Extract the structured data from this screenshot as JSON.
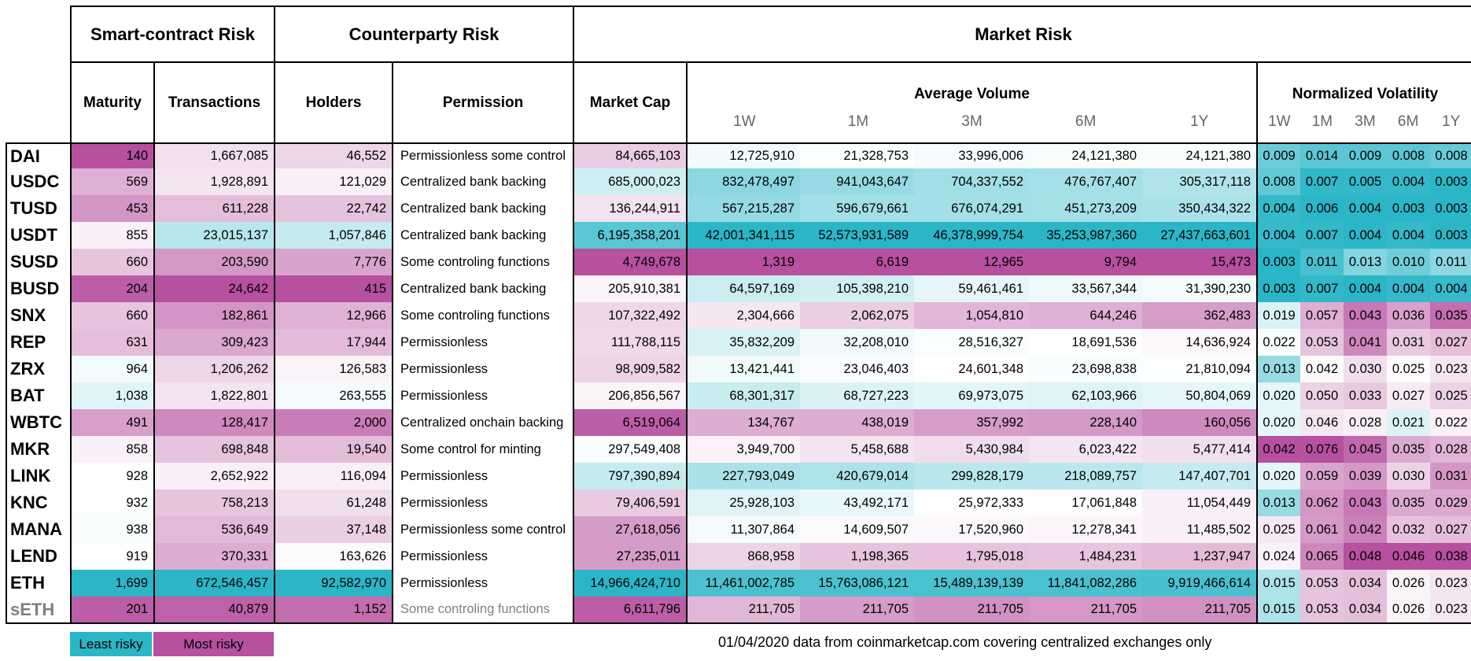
{
  "colors": {
    "least_risky": "#2bb6c7",
    "most_risky": "#b6509f",
    "neutral": "#ffffff",
    "border": "#000000"
  },
  "header": {
    "groups": [
      {
        "label": "Smart-contract Risk"
      },
      {
        "label": "Counterparty Risk"
      },
      {
        "label": "Market Risk"
      }
    ],
    "columns": {
      "maturity": "Maturity",
      "transactions": "Transactions",
      "holders": "Holders",
      "permission": "Permission",
      "market_cap": "Market Cap",
      "average_volume": "Average Volume",
      "normalized_volatility": "Normalized Volatility"
    },
    "periods": [
      "1W",
      "1M",
      "3M",
      "6M",
      "1Y"
    ]
  },
  "chart_data": {
    "type": "table",
    "rows": [
      {
        "token": "DAI",
        "maturity": "140",
        "transactions": "1,667,085",
        "holders": "46,552",
        "permission": "Permissionless some control",
        "market_cap": "84,665,103",
        "volume": [
          "12,725,910",
          "21,328,753",
          "33,996,006",
          "24,121,380",
          "24,121,380"
        ],
        "volatility": [
          "0.009",
          "0.014",
          "0.009",
          "0.008",
          "0.008"
        ]
      },
      {
        "token": "USDC",
        "maturity": "569",
        "transactions": "1,928,891",
        "holders": "121,029",
        "permission": "Centralized bank backing",
        "market_cap": "685,000,023",
        "volume": [
          "832,478,497",
          "941,043,647",
          "704,337,552",
          "476,767,407",
          "305,317,118"
        ],
        "volatility": [
          "0.008",
          "0.007",
          "0.005",
          "0.004",
          "0.003"
        ]
      },
      {
        "token": "TUSD",
        "maturity": "453",
        "transactions": "611,228",
        "holders": "22,742",
        "permission": "Centralized bank backing",
        "market_cap": "136,244,911",
        "volume": [
          "567,215,287",
          "596,679,661",
          "676,074,291",
          "451,273,209",
          "350,434,322"
        ],
        "volatility": [
          "0.004",
          "0.006",
          "0.004",
          "0.003",
          "0.003"
        ]
      },
      {
        "token": "USDT",
        "maturity": "855",
        "transactions": "23,015,137",
        "holders": "1,057,846",
        "permission": "Centralized bank backing",
        "market_cap": "6,195,358,201",
        "volume": [
          "42,001,341,115",
          "52,573,931,589",
          "46,378,999,754",
          "35,253,987,360",
          "27,437,663,601"
        ],
        "volatility": [
          "0.004",
          "0.007",
          "0.004",
          "0.004",
          "0.003"
        ]
      },
      {
        "token": "SUSD",
        "maturity": "660",
        "transactions": "203,590",
        "holders": "7,776",
        "permission": "Some controling functions",
        "market_cap": "4,749,678",
        "volume": [
          "1,319",
          "6,619",
          "12,965",
          "9,794",
          "15,473"
        ],
        "volatility": [
          "0.003",
          "0.011",
          "0.013",
          "0.010",
          "0.011"
        ]
      },
      {
        "token": "BUSD",
        "maturity": "204",
        "transactions": "24,642",
        "holders": "415",
        "permission": "Centralized bank backing",
        "market_cap": "205,910,381",
        "volume": [
          "64,597,169",
          "105,398,210",
          "59,461,461",
          "33,567,344",
          "31,390,230"
        ],
        "volatility": [
          "0.003",
          "0.007",
          "0.004",
          "0.004",
          "0.004"
        ]
      },
      {
        "token": "SNX",
        "maturity": "660",
        "transactions": "182,861",
        "holders": "12,966",
        "permission": "Some controling functions",
        "market_cap": "107,322,492",
        "volume": [
          "2,304,666",
          "2,062,075",
          "1,054,810",
          "644,246",
          "362,483"
        ],
        "volatility": [
          "0.019",
          "0.057",
          "0.043",
          "0.036",
          "0.035"
        ]
      },
      {
        "token": "REP",
        "maturity": "631",
        "transactions": "309,423",
        "holders": "17,944",
        "permission": "Permissionless",
        "market_cap": "111,788,115",
        "volume": [
          "35,832,209",
          "32,208,010",
          "28,516,327",
          "18,691,536",
          "14,636,924"
        ],
        "volatility": [
          "0.022",
          "0.053",
          "0.041",
          "0.031",
          "0.027"
        ]
      },
      {
        "token": "ZRX",
        "maturity": "964",
        "transactions": "1,206,262",
        "holders": "126,583",
        "permission": "Permissionless",
        "market_cap": "98,909,582",
        "volume": [
          "13,421,441",
          "23,046,403",
          "24,601,348",
          "23,698,838",
          "21,810,094"
        ],
        "volatility": [
          "0.013",
          "0.042",
          "0.030",
          "0.025",
          "0.023"
        ]
      },
      {
        "token": "BAT",
        "maturity": "1,038",
        "transactions": "1,822,801",
        "holders": "263,555",
        "permission": "Permissionless",
        "market_cap": "206,856,567",
        "volume": [
          "68,301,317",
          "68,727,223",
          "69,973,075",
          "62,103,966",
          "50,804,069"
        ],
        "volatility": [
          "0.020",
          "0.050",
          "0.033",
          "0.027",
          "0.025"
        ]
      },
      {
        "token": "WBTC",
        "maturity": "491",
        "transactions": "128,417",
        "holders": "2,000",
        "permission": "Centralized onchain backing",
        "market_cap": "6,519,064",
        "volume": [
          "134,767",
          "438,019",
          "357,992",
          "228,140",
          "160,056"
        ],
        "volatility": [
          "0.020",
          "0.046",
          "0.028",
          "0.021",
          "0.022"
        ]
      },
      {
        "token": "MKR",
        "maturity": "858",
        "transactions": "698,848",
        "holders": "19,540",
        "permission": "Some control for minting",
        "market_cap": "297,549,408",
        "volume": [
          "3,949,700",
          "5,458,688",
          "5,430,984",
          "6,023,422",
          "5,477,414"
        ],
        "volatility": [
          "0.042",
          "0.076",
          "0.045",
          "0.035",
          "0.028"
        ]
      },
      {
        "token": "LINK",
        "maturity": "928",
        "transactions": "2,652,922",
        "holders": "116,094",
        "permission": "Permissionless",
        "market_cap": "797,390,894",
        "volume": [
          "227,793,049",
          "420,679,014",
          "299,828,179",
          "218,089,757",
          "147,407,701"
        ],
        "volatility": [
          "0.020",
          "0.059",
          "0.039",
          "0.030",
          "0.031"
        ]
      },
      {
        "token": "KNC",
        "maturity": "932",
        "transactions": "758,213",
        "holders": "61,248",
        "permission": "Permissionless",
        "market_cap": "79,406,591",
        "volume": [
          "25,928,103",
          "43,492,171",
          "25,972,333",
          "17,061,848",
          "11,054,449"
        ],
        "volatility": [
          "0.013",
          "0.062",
          "0.043",
          "0.035",
          "0.029"
        ]
      },
      {
        "token": "MANA",
        "maturity": "938",
        "transactions": "536,649",
        "holders": "37,148",
        "permission": "Permissionless some control",
        "market_cap": "27,618,056",
        "volume": [
          "11,307,864",
          "14,609,507",
          "17,520,960",
          "12,278,341",
          "11,485,502"
        ],
        "volatility": [
          "0.025",
          "0.061",
          "0.042",
          "0.032",
          "0.027"
        ]
      },
      {
        "token": "LEND",
        "maturity": "919",
        "transactions": "370,331",
        "holders": "163,626",
        "permission": "Permissionless",
        "market_cap": "27,235,011",
        "volume": [
          "868,958",
          "1,198,365",
          "1,795,018",
          "1,484,231",
          "1,237,947"
        ],
        "volatility": [
          "0.024",
          "0.065",
          "0.048",
          "0.046",
          "0.038"
        ]
      },
      {
        "token": "ETH",
        "maturity": "1,699",
        "transactions": "672,546,457",
        "holders": "92,582,970",
        "permission": "Permissionless",
        "market_cap": "14,966,424,710",
        "volume": [
          "11,461,002,785",
          "15,763,086,121",
          "15,489,139,139",
          "11,841,082,286",
          "9,919,466,614"
        ],
        "volatility": [
          "0.015",
          "0.053",
          "0.034",
          "0.026",
          "0.023"
        ]
      },
      {
        "token": "sETH",
        "maturity": "201",
        "transactions": "40,879",
        "holders": "1,152",
        "permission": "Some controling functions",
        "market_cap": "6,611,796",
        "volume": [
          "211,705",
          "211,705",
          "211,705",
          "211,705",
          "211,705"
        ],
        "volatility": [
          "0.015",
          "0.053",
          "0.034",
          "0.026",
          "0.023"
        ],
        "muted": true
      }
    ]
  },
  "legend": {
    "least_risky": "Least risky",
    "most_risky": "Most risky"
  },
  "footer": {
    "note": "01/04/2020  data from coinmarketcap.com covering centralized exchanges only"
  }
}
